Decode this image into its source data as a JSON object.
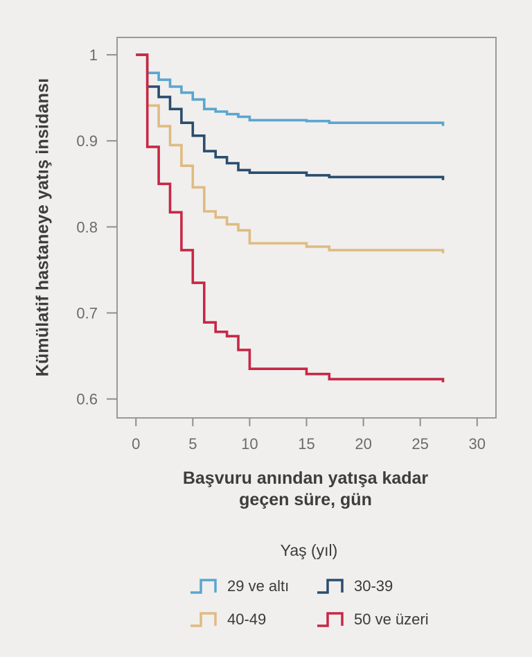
{
  "chart_data": {
    "type": "line",
    "subtype": "kaplan-meier-step",
    "title": "",
    "ylabel": "Kümülatif hastaneye yatış insidansı",
    "xlabel_lines": [
      "Başvuru anından yatışa kadar",
      "geçen süre, gün"
    ],
    "xlim": [
      -1.66,
      31.66
    ],
    "ylim": [
      0.578,
      1.0202
    ],
    "xticks": [
      0,
      5,
      10,
      15,
      20,
      25,
      30
    ],
    "xtick_labels": [
      "0",
      "5",
      "10",
      "15",
      "20",
      "25",
      "30"
    ],
    "yticks": [
      1,
      0.9,
      0.8,
      0.7,
      0.6
    ],
    "ytick_labels": [
      "1",
      "0.9",
      "0.8",
      "0.7",
      "0.6"
    ],
    "grid": false,
    "end_day": 27,
    "series": [
      {
        "id": "29-ve-alti",
        "name": "29 ve altı",
        "color": "#5aa6cf",
        "steps": [
          [
            0,
            1.0
          ],
          [
            1,
            0.979
          ],
          [
            2,
            0.971
          ],
          [
            3,
            0.963
          ],
          [
            4,
            0.956
          ],
          [
            5,
            0.948
          ],
          [
            6,
            0.937
          ],
          [
            7,
            0.934
          ],
          [
            8,
            0.931
          ],
          [
            9,
            0.928
          ],
          [
            10,
            0.924
          ],
          [
            15,
            0.923
          ],
          [
            17,
            0.921
          ]
        ]
      },
      {
        "id": "30-39",
        "name": "30-39",
        "color": "#2b4d6d",
        "steps": [
          [
            0,
            1.0
          ],
          [
            1,
            0.963
          ],
          [
            2,
            0.951
          ],
          [
            3,
            0.937
          ],
          [
            4,
            0.921
          ],
          [
            5,
            0.906
          ],
          [
            6,
            0.888
          ],
          [
            7,
            0.881
          ],
          [
            8,
            0.874
          ],
          [
            9,
            0.866
          ],
          [
            10,
            0.863
          ],
          [
            15,
            0.86
          ],
          [
            17,
            0.858
          ]
        ]
      },
      {
        "id": "40-49",
        "name": "40-49",
        "color": "#dfbb82",
        "steps": [
          [
            0,
            1.0
          ],
          [
            1,
            0.941
          ],
          [
            2,
            0.917
          ],
          [
            3,
            0.895
          ],
          [
            4,
            0.871
          ],
          [
            5,
            0.846
          ],
          [
            6,
            0.818
          ],
          [
            7,
            0.811
          ],
          [
            8,
            0.803
          ],
          [
            9,
            0.796
          ],
          [
            10,
            0.781
          ],
          [
            15,
            0.777
          ],
          [
            17,
            0.773
          ]
        ]
      },
      {
        "id": "50-ve-uzeri",
        "name": "50 ve üzeri",
        "color": "#c62846",
        "steps": [
          [
            0,
            1.0
          ],
          [
            1,
            0.893
          ],
          [
            2,
            0.85
          ],
          [
            3,
            0.817
          ],
          [
            4,
            0.773
          ],
          [
            5,
            0.735
          ],
          [
            6,
            0.689
          ],
          [
            7,
            0.678
          ],
          [
            8,
            0.673
          ],
          [
            9,
            0.657
          ],
          [
            10,
            0.635
          ],
          [
            15,
            0.629
          ],
          [
            17,
            0.623
          ]
        ]
      }
    ]
  },
  "legend": {
    "title": "Yaş (yıl)",
    "items": [
      {
        "label": "29 ve altı",
        "color": "#5aa6cf"
      },
      {
        "label": "30-39",
        "color": "#2b4d6d"
      },
      {
        "label": "40-49",
        "color": "#dfbb82"
      },
      {
        "label": "50 ve üzeri",
        "color": "#c62846"
      }
    ]
  },
  "colors": {
    "background": "#f0efee",
    "frame": "#999999",
    "tick": "#8f8f8f",
    "tick_text": "#6b6b6b",
    "label_text": "#3d3d3d"
  }
}
